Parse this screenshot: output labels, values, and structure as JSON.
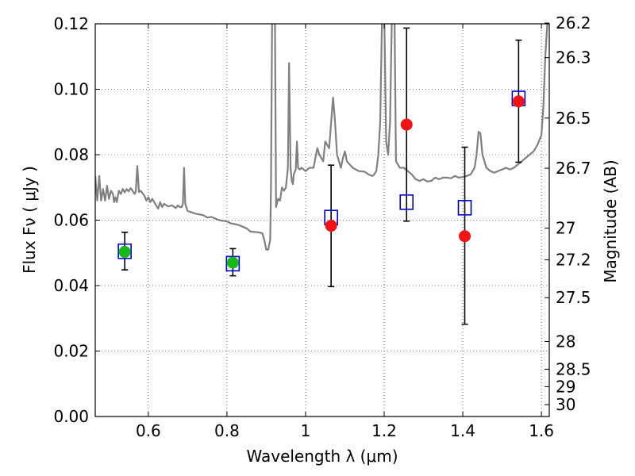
{
  "chart_data": {
    "type": "scatter",
    "xlabel": "Wavelength  λ (μm)",
    "ylabel": "Flux  Fν  ( μJy )",
    "y2label": "Magnitude (AB)",
    "xlim": [
      0.465,
      1.62
    ],
    "ylim": [
      0.0,
      0.12
    ],
    "grid": true,
    "x_ticks": [
      0.6,
      0.8,
      1.0,
      1.2,
      1.4,
      1.6
    ],
    "x_tick_labels": [
      "0.6",
      "0.8",
      "1",
      "1.2",
      "1.4",
      "1.6"
    ],
    "y_ticks": [
      0.0,
      0.02,
      0.04,
      0.06,
      0.08,
      0.1,
      0.12
    ],
    "y_tick_labels": [
      "0.00",
      "0.02",
      "0.04",
      "0.06",
      "0.08",
      "0.10",
      "0.12"
    ],
    "mag_ticks": [
      26.2,
      26.3,
      26.5,
      26.7,
      27,
      27.2,
      27.5,
      28,
      28.5,
      29,
      30
    ],
    "mag_tick_labels": [
      "26.2",
      "26.3",
      "26.5",
      "26.7",
      "27",
      "27.2",
      "27.5",
      "28",
      "28.5",
      "29",
      "30"
    ],
    "series": [
      {
        "name": "model photometry",
        "marker": "open-square",
        "color": "#0000cc",
        "x": [
          0.54,
          0.815,
          1.065,
          1.257,
          1.405,
          1.542
        ],
        "y": [
          0.0505,
          0.0467,
          0.0608,
          0.0655,
          0.0638,
          0.0972
        ]
      },
      {
        "name": "observed (green)",
        "marker": "filled-circle",
        "color": "#17b817",
        "x": [
          0.54,
          0.815
        ],
        "y": [
          0.0503,
          0.047
        ],
        "yerr_low": [
          0.0448,
          0.043
        ],
        "yerr_high": [
          0.0563,
          0.0513
        ]
      },
      {
        "name": "observed (red)",
        "marker": "filled-circle",
        "color": "#f21414",
        "x": [
          1.065,
          1.257,
          1.405,
          1.542
        ],
        "y": [
          0.0583,
          0.0892,
          0.0551,
          0.0963
        ],
        "yerr_low": [
          0.0397,
          0.0597,
          0.0282,
          0.0777
        ],
        "yerr_high": [
          0.0768,
          0.1187,
          0.0823,
          0.115
        ]
      },
      {
        "name": "model spectrum",
        "type": "line",
        "color": "#808080",
        "points": [
          [
            0.465,
            0.0735
          ],
          [
            0.47,
            0.066
          ],
          [
            0.475,
            0.0735
          ],
          [
            0.48,
            0.066
          ],
          [
            0.485,
            0.0695
          ],
          [
            0.49,
            0.066
          ],
          [
            0.495,
            0.0705
          ],
          [
            0.5,
            0.0665
          ],
          [
            0.505,
            0.069
          ],
          [
            0.51,
            0.068
          ],
          [
            0.513,
            0.0655
          ],
          [
            0.516,
            0.067
          ],
          [
            0.52,
            0.0655
          ],
          [
            0.525,
            0.069
          ],
          [
            0.53,
            0.068
          ],
          [
            0.535,
            0.0695
          ],
          [
            0.54,
            0.0685
          ],
          [
            0.545,
            0.0695
          ],
          [
            0.55,
            0.0688
          ],
          [
            0.555,
            0.0698
          ],
          [
            0.56,
            0.069
          ],
          [
            0.565,
            0.068
          ],
          [
            0.568,
            0.0686
          ],
          [
            0.572,
            0.0765
          ],
          [
            0.576,
            0.0686
          ],
          [
            0.58,
            0.069
          ],
          [
            0.59,
            0.0675
          ],
          [
            0.595,
            0.066
          ],
          [
            0.6,
            0.067
          ],
          [
            0.605,
            0.0655
          ],
          [
            0.61,
            0.0665
          ],
          [
            0.62,
            0.0645
          ],
          [
            0.625,
            0.0635
          ],
          [
            0.63,
            0.0655
          ],
          [
            0.635,
            0.064
          ],
          [
            0.64,
            0.065
          ],
          [
            0.65,
            0.0642
          ],
          [
            0.66,
            0.0645
          ],
          [
            0.67,
            0.0637
          ],
          [
            0.675,
            0.0645
          ],
          [
            0.68,
            0.064
          ],
          [
            0.685,
            0.064
          ],
          [
            0.688,
            0.065
          ],
          [
            0.691,
            0.076
          ],
          [
            0.694,
            0.065
          ],
          [
            0.7,
            0.0628
          ],
          [
            0.72,
            0.062
          ],
          [
            0.74,
            0.0615
          ],
          [
            0.75,
            0.0608
          ],
          [
            0.76,
            0.061
          ],
          [
            0.77,
            0.0605
          ],
          [
            0.78,
            0.06
          ],
          [
            0.79,
            0.0598
          ],
          [
            0.8,
            0.0596
          ],
          [
            0.81,
            0.059
          ],
          [
            0.82,
            0.0588
          ],
          [
            0.83,
            0.0585
          ],
          [
            0.85,
            0.0575
          ],
          [
            0.86,
            0.0565
          ],
          [
            0.88,
            0.0563
          ],
          [
            0.89,
            0.056
          ],
          [
            0.895,
            0.054
          ],
          [
            0.9,
            0.051
          ],
          [
            0.905,
            0.051
          ],
          [
            0.91,
            0.054
          ],
          [
            0.912,
            0.07
          ],
          [
            0.915,
            0.125
          ],
          [
            0.922,
            0.125
          ],
          [
            0.925,
            0.064
          ],
          [
            0.93,
            0.0665
          ],
          [
            0.935,
            0.066
          ],
          [
            0.94,
            0.07
          ],
          [
            0.945,
            0.069
          ],
          [
            0.95,
            0.07
          ],
          [
            0.955,
            0.076
          ],
          [
            0.958,
            0.108
          ],
          [
            0.962,
            0.076
          ],
          [
            0.965,
            0.072
          ],
          [
            0.968,
            0.071
          ],
          [
            0.97,
            0.074
          ],
          [
            0.975,
            0.0755
          ],
          [
            0.978,
            0.084
          ],
          [
            0.981,
            0.076
          ],
          [
            0.985,
            0.0755
          ],
          [
            0.99,
            0.076
          ],
          [
            1.0,
            0.075
          ],
          [
            1.01,
            0.076
          ],
          [
            1.02,
            0.076
          ],
          [
            1.03,
            0.082
          ],
          [
            1.035,
            0.08
          ],
          [
            1.045,
            0.078
          ],
          [
            1.05,
            0.084
          ],
          [
            1.06,
            0.082
          ],
          [
            1.07,
            0.0975
          ],
          [
            1.075,
            0.09
          ],
          [
            1.08,
            0.08
          ],
          [
            1.09,
            0.076
          ],
          [
            1.095,
            0.079
          ],
          [
            1.1,
            0.081
          ],
          [
            1.105,
            0.078
          ],
          [
            1.12,
            0.076
          ],
          [
            1.135,
            0.075
          ],
          [
            1.15,
            0.0748
          ],
          [
            1.16,
            0.074
          ],
          [
            1.17,
            0.0735
          ],
          [
            1.175,
            0.074
          ],
          [
            1.18,
            0.075
          ],
          [
            1.185,
            0.08
          ],
          [
            1.19,
            0.09
          ],
          [
            1.195,
            0.125
          ],
          [
            1.2,
            0.125
          ],
          [
            1.205,
            0.084
          ],
          [
            1.21,
            0.08
          ],
          [
            1.215,
            0.09
          ],
          [
            1.22,
            0.125
          ],
          [
            1.226,
            0.125
          ],
          [
            1.23,
            0.078
          ],
          [
            1.24,
            0.076
          ],
          [
            1.25,
            0.076
          ],
          [
            1.27,
            0.074
          ],
          [
            1.28,
            0.0725
          ],
          [
            1.29,
            0.072
          ],
          [
            1.3,
            0.0725
          ],
          [
            1.31,
            0.0718
          ],
          [
            1.32,
            0.072
          ],
          [
            1.33,
            0.073
          ],
          [
            1.34,
            0.0725
          ],
          [
            1.35,
            0.073
          ],
          [
            1.36,
            0.073
          ],
          [
            1.37,
            0.0728
          ],
          [
            1.38,
            0.0735
          ],
          [
            1.39,
            0.073
          ],
          [
            1.4,
            0.0732
          ],
          [
            1.41,
            0.0735
          ],
          [
            1.42,
            0.074
          ],
          [
            1.43,
            0.076
          ],
          [
            1.435,
            0.08
          ],
          [
            1.44,
            0.087
          ],
          [
            1.445,
            0.0865
          ],
          [
            1.45,
            0.08
          ],
          [
            1.46,
            0.076
          ],
          [
            1.47,
            0.075
          ],
          [
            1.48,
            0.0745
          ],
          [
            1.49,
            0.075
          ],
          [
            1.5,
            0.0755
          ],
          [
            1.51,
            0.076
          ],
          [
            1.52,
            0.0755
          ],
          [
            1.53,
            0.076
          ],
          [
            1.54,
            0.077
          ],
          [
            1.55,
            0.078
          ],
          [
            1.56,
            0.079
          ],
          [
            1.57,
            0.08
          ],
          [
            1.58,
            0.081
          ],
          [
            1.59,
            0.083
          ],
          [
            1.6,
            0.086
          ],
          [
            1.605,
            0.095
          ],
          [
            1.61,
            0.11
          ],
          [
            1.615,
            0.12
          ],
          [
            1.62,
            0.122
          ]
        ]
      }
    ]
  }
}
